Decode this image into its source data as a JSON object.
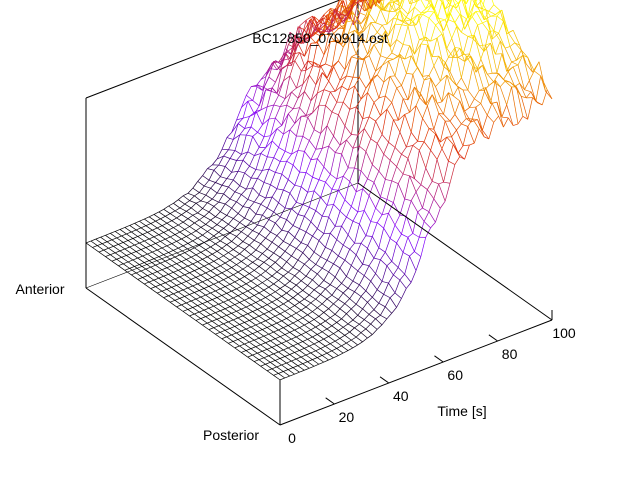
{
  "chart_data": {
    "type": "surface",
    "title": "BC12850_070914.ost",
    "xlabel": "Time [s]",
    "x_ticks": [
      "0",
      "20",
      "40",
      "60",
      "80",
      "100"
    ],
    "xlim": [
      0,
      100
    ],
    "y_axis_labels": {
      "low": "Posterior",
      "high": "Anterior"
    },
    "z_axis_labels": [],
    "colormap": [
      "#000000",
      "#8000ff",
      "#e03000",
      "#ffff00"
    ],
    "surface_profile": {
      "description_time": "signal rises sigmoidally with time",
      "time_onset": 30,
      "time_midpoint": 55,
      "plateau_level_relative": 1.0,
      "baseline_level_relative": 0.0,
      "plateau_reached_at": 75
    },
    "grid": false,
    "box": true
  }
}
